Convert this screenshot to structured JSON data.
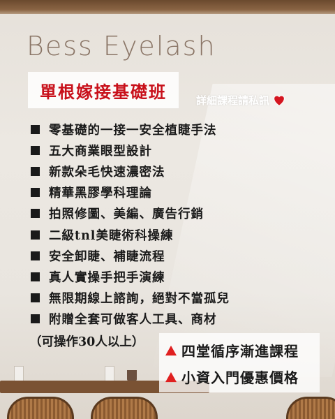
{
  "brand": "Bess Eyelash",
  "title": "單根嫁接基礎班",
  "dm_text": "詳細課程請私訊",
  "features": [
    "零基礎的一接一安全植睫手法",
    "五大商業眼型設計",
    "新款朵毛快速濃密法",
    "精華黑膠學科理論",
    "拍照修圖、美編、廣告行銷",
    "二級tnl美睫術科操練",
    "安全卸睫、補睫流程",
    "真人實操手把手演練",
    "無限期線上諮詢，絕對不當孤兒",
    "附贈全套可做客人工具、商材"
  ],
  "note": "（可操作30人以上）",
  "promo": [
    "四堂循序漸進課程",
    "小資入門優惠價格"
  ],
  "colors": {
    "title_red": "#c8101a",
    "heart": "#d4151f",
    "triangle": "#e02020"
  },
  "icons": {
    "heart": "heart-icon",
    "bullet": "square-bullet-icon",
    "triangle": "warning-triangle-icon"
  }
}
